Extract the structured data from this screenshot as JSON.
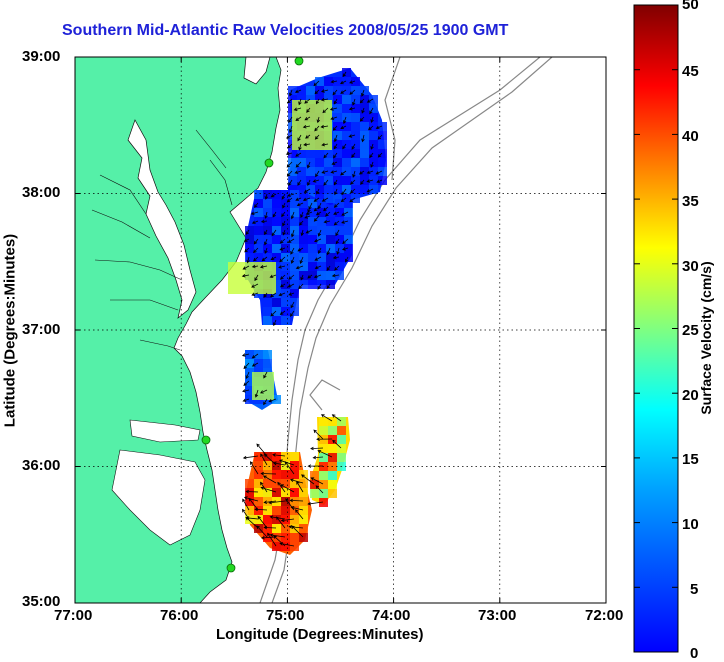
{
  "title": "Southern Mid-Atlantic Raw Velocities 2008/05/25 1900 GMT",
  "xlabel": "Longitude (Degrees:Minutes)",
  "ylabel": "Latitude (Degrees:Minutes)",
  "xticks": [
    "77:00",
    "76:00",
    "75:00",
    "74:00",
    "73:00",
    "72:00"
  ],
  "yticks": [
    "39:00",
    "38:00",
    "37:00",
    "36:00",
    "35:00"
  ],
  "colorbar": {
    "label": "Surface Velocity (cm/s)",
    "ticks": [
      "50",
      "45",
      "40",
      "35",
      "30",
      "25",
      "20",
      "15",
      "10",
      "5",
      "0"
    ],
    "range": [
      0,
      50
    ],
    "colormap": "jet"
  },
  "colors": {
    "land": "#55f0a8",
    "title": "#1f22d8",
    "bathymetry": "#888888",
    "station": "#22d822"
  },
  "chart_data": {
    "type": "heatmap",
    "title": "Southern Mid-Atlantic Raw Velocities 2008/05/25 1900 GMT",
    "xlabel": "Longitude (Degrees:Minutes)",
    "ylabel": "Latitude (Degrees:Minutes)",
    "xlim": [
      -77,
      -72
    ],
    "ylim": [
      35,
      39
    ],
    "grid": true,
    "legend": "colorbar right",
    "value_range_cm_s": [
      0,
      50
    ]
  }
}
